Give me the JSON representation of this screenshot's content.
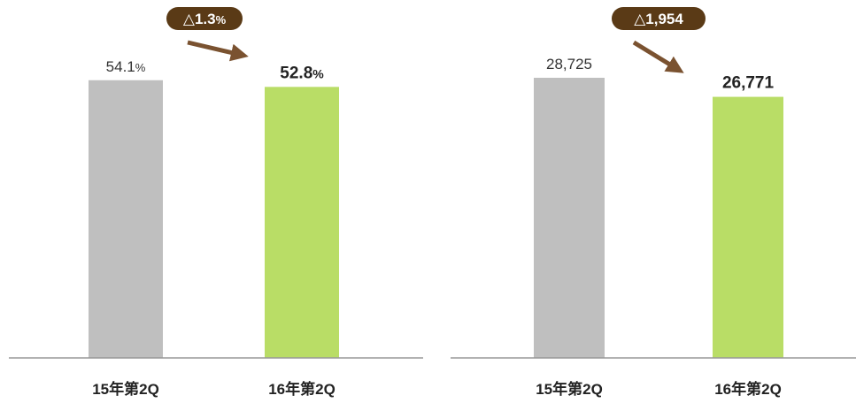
{
  "chart_data": [
    {
      "type": "bar",
      "categories": [
        "15年第2Q",
        "16年第2Q"
      ],
      "values": [
        54.1,
        52.8
      ],
      "value_labels": [
        {
          "number": "54.1",
          "unit": "%"
        },
        {
          "number": "52.8",
          "unit": "%"
        }
      ],
      "bar_colors": [
        "#bfbfbf",
        "#b9dd66"
      ],
      "ylim": [
        0,
        56.3
      ],
      "change_badge": {
        "symbol": "△",
        "number": "1.3",
        "unit": "%"
      }
    },
    {
      "type": "bar",
      "categories": [
        "15年第2Q",
        "16年第2Q"
      ],
      "values": [
        28725,
        26771
      ],
      "value_labels": [
        {
          "number": "28,725",
          "unit": ""
        },
        {
          "number": "26,771",
          "unit": ""
        }
      ],
      "bar_colors": [
        "#bfbfbf",
        "#b9dd66"
      ],
      "ylim": [
        0,
        28725
      ],
      "change_badge": {
        "symbol": "△",
        "number": "1,954",
        "unit": ""
      }
    }
  ],
  "colors": {
    "badge": "#5a3a16",
    "arrow": "#7a5230",
    "axis": "#999999"
  }
}
